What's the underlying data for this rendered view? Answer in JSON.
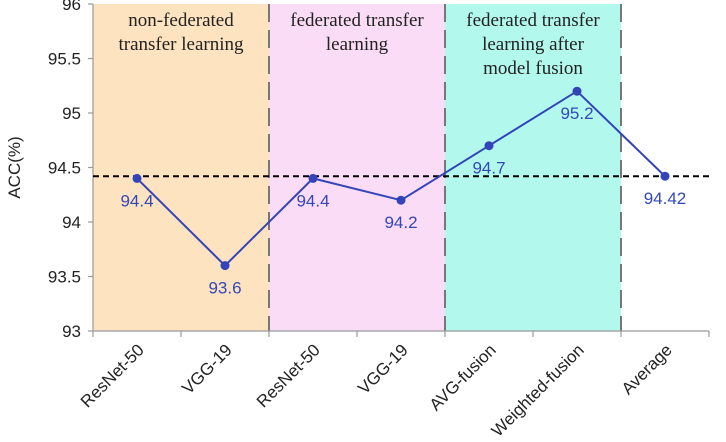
{
  "chart_data": {
    "type": "line",
    "ylabel": "ACC(%)",
    "ylim": [
      93,
      96
    ],
    "yticks": [
      "93",
      "93.5",
      "94",
      "94.5",
      "95",
      "95.5",
      "96"
    ],
    "categories": [
      "ResNet-50",
      "VGG-19",
      "ResNet-50",
      "VGG-19",
      "AVG-fusion",
      "Weighted-fusion",
      "Average"
    ],
    "values": [
      94.4,
      93.6,
      94.4,
      94.2,
      94.7,
      95.2,
      94.42
    ],
    "data_labels": [
      "94.4",
      "93.6",
      "94.4",
      "94.2",
      "94.7",
      "95.2",
      "94.42"
    ],
    "reference_line": 94.42,
    "regions": [
      {
        "lines": [
          "non-federated",
          "transfer learning"
        ],
        "color": "#fde3c0"
      },
      {
        "lines": [
          "federated transfer",
          "learning"
        ],
        "color": "#fbdcf6"
      },
      {
        "lines": [
          "federated transfer",
          "learning after",
          "model fusion"
        ],
        "color": "#b2f8ec"
      }
    ],
    "line_color": "#3344bb",
    "grid": false
  }
}
